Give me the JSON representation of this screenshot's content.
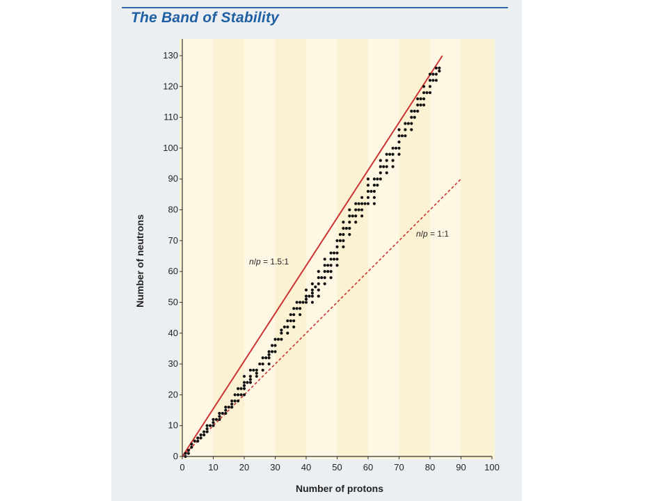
{
  "title": "The Band of Stability",
  "chart_data": {
    "type": "scatter",
    "title": "The Band of Stability",
    "xlabel": "Number of protons",
    "ylabel": "Number of neutrons",
    "xlim": [
      0,
      100
    ],
    "ylim": [
      0,
      130
    ],
    "xticks": [
      0,
      10,
      20,
      30,
      40,
      50,
      60,
      70,
      80,
      90,
      100
    ],
    "yticks": [
      0,
      10,
      20,
      30,
      40,
      50,
      60,
      70,
      80,
      90,
      100,
      110,
      120,
      130
    ],
    "grid": false,
    "lines": [
      {
        "label_n": "n",
        "label_p": "p",
        "label_value": " = 1.5:1",
        "style": "solid",
        "color": "#cc3333",
        "x": [
          0,
          84
        ],
        "y": [
          0,
          130
        ]
      },
      {
        "label_n": "n",
        "label_p": "p",
        "label_value": " = 1:1",
        "style": "dashed",
        "color": "#cc3333",
        "x": [
          0,
          90
        ],
        "y": [
          0,
          90
        ]
      }
    ],
    "series": [
      {
        "points": [
          [
            1,
            0
          ],
          [
            1,
            1
          ],
          [
            2,
            1
          ],
          [
            2,
            2
          ],
          [
            3,
            3
          ],
          [
            3,
            4
          ],
          [
            4,
            5
          ],
          [
            5,
            5
          ],
          [
            5,
            6
          ],
          [
            6,
            6
          ],
          [
            6,
            7
          ],
          [
            7,
            7
          ],
          [
            7,
            8
          ],
          [
            8,
            8
          ],
          [
            8,
            9
          ],
          [
            8,
            10
          ],
          [
            9,
            10
          ],
          [
            10,
            10
          ],
          [
            10,
            11
          ],
          [
            10,
            12
          ],
          [
            11,
            12
          ],
          [
            12,
            12
          ],
          [
            12,
            13
          ],
          [
            12,
            14
          ],
          [
            13,
            14
          ],
          [
            14,
            14
          ],
          [
            14,
            15
          ],
          [
            14,
            16
          ],
          [
            15,
            16
          ],
          [
            16,
            16
          ],
          [
            16,
            17
          ],
          [
            16,
            18
          ],
          [
            17,
            18
          ],
          [
            17,
            20
          ],
          [
            18,
            18
          ],
          [
            18,
            20
          ],
          [
            18,
            22
          ],
          [
            19,
            20
          ],
          [
            19,
            22
          ],
          [
            20,
            20
          ],
          [
            20,
            22
          ],
          [
            20,
            23
          ],
          [
            20,
            24
          ],
          [
            20,
            26
          ],
          [
            21,
            24
          ],
          [
            22,
            24
          ],
          [
            22,
            25
          ],
          [
            22,
            26
          ],
          [
            22,
            28
          ],
          [
            23,
            28
          ],
          [
            24,
            26
          ],
          [
            24,
            27
          ],
          [
            24,
            28
          ],
          [
            25,
            30
          ],
          [
            26,
            28
          ],
          [
            26,
            30
          ],
          [
            26,
            32
          ],
          [
            27,
            32
          ],
          [
            28,
            30
          ],
          [
            28,
            32
          ],
          [
            28,
            33
          ],
          [
            28,
            34
          ],
          [
            29,
            34
          ],
          [
            29,
            36
          ],
          [
            30,
            34
          ],
          [
            30,
            36
          ],
          [
            30,
            38
          ],
          [
            31,
            38
          ],
          [
            32,
            38
          ],
          [
            32,
            40
          ],
          [
            32,
            41
          ],
          [
            33,
            42
          ],
          [
            34,
            40
          ],
          [
            34,
            42
          ],
          [
            34,
            44
          ],
          [
            35,
            44
          ],
          [
            35,
            46
          ],
          [
            36,
            42
          ],
          [
            36,
            44
          ],
          [
            36,
            46
          ],
          [
            36,
            48
          ],
          [
            37,
            48
          ],
          [
            37,
            50
          ],
          [
            38,
            46
          ],
          [
            38,
            48
          ],
          [
            38,
            50
          ],
          [
            39,
            50
          ],
          [
            40,
            50
          ],
          [
            40,
            51
          ],
          [
            40,
            52
          ],
          [
            40,
            54
          ],
          [
            41,
            52
          ],
          [
            42,
            50
          ],
          [
            42,
            52
          ],
          [
            42,
            53
          ],
          [
            42,
            54
          ],
          [
            42,
            56
          ],
          [
            43,
            55
          ],
          [
            44,
            52
          ],
          [
            44,
            54
          ],
          [
            44,
            56
          ],
          [
            44,
            58
          ],
          [
            44,
            60
          ],
          [
            45,
            58
          ],
          [
            46,
            56
          ],
          [
            46,
            58
          ],
          [
            46,
            60
          ],
          [
            46,
            62
          ],
          [
            46,
            64
          ],
          [
            47,
            60
          ],
          [
            47,
            62
          ],
          [
            48,
            58
          ],
          [
            48,
            60
          ],
          [
            48,
            62
          ],
          [
            48,
            64
          ],
          [
            48,
            66
          ],
          [
            49,
            64
          ],
          [
            49,
            66
          ],
          [
            50,
            62
          ],
          [
            50,
            64
          ],
          [
            50,
            66
          ],
          [
            50,
            68
          ],
          [
            50,
            70
          ],
          [
            51,
            70
          ],
          [
            51,
            72
          ],
          [
            52,
            68
          ],
          [
            52,
            70
          ],
          [
            52,
            72
          ],
          [
            52,
            74
          ],
          [
            52,
            76
          ],
          [
            53,
            74
          ],
          [
            54,
            72
          ],
          [
            54,
            74
          ],
          [
            54,
            76
          ],
          [
            54,
            78
          ],
          [
            54,
            80
          ],
          [
            55,
            78
          ],
          [
            56,
            76
          ],
          [
            56,
            78
          ],
          [
            56,
            80
          ],
          [
            56,
            82
          ],
          [
            57,
            80
          ],
          [
            57,
            82
          ],
          [
            58,
            78
          ],
          [
            58,
            80
          ],
          [
            58,
            82
          ],
          [
            58,
            84
          ],
          [
            59,
            82
          ],
          [
            60,
            82
          ],
          [
            60,
            84
          ],
          [
            60,
            86
          ],
          [
            60,
            88
          ],
          [
            60,
            90
          ],
          [
            61,
            86
          ],
          [
            62,
            82
          ],
          [
            62,
            84
          ],
          [
            62,
            86
          ],
          [
            62,
            88
          ],
          [
            62,
            90
          ],
          [
            63,
            88
          ],
          [
            63,
            90
          ],
          [
            64,
            90
          ],
          [
            64,
            92
          ],
          [
            64,
            94
          ],
          [
            64,
            96
          ],
          [
            65,
            94
          ],
          [
            66,
            92
          ],
          [
            66,
            94
          ],
          [
            66,
            96
          ],
          [
            66,
            98
          ],
          [
            67,
            98
          ],
          [
            68,
            94
          ],
          [
            68,
            96
          ],
          [
            68,
            98
          ],
          [
            68,
            100
          ],
          [
            69,
            100
          ],
          [
            70,
            98
          ],
          [
            70,
            100
          ],
          [
            70,
            102
          ],
          [
            70,
            104
          ],
          [
            70,
            106
          ],
          [
            71,
            104
          ],
          [
            72,
            104
          ],
          [
            72,
            106
          ],
          [
            72,
            108
          ],
          [
            73,
            108
          ],
          [
            74,
            106
          ],
          [
            74,
            108
          ],
          [
            74,
            110
          ],
          [
            74,
            112
          ],
          [
            75,
            110
          ],
          [
            75,
            112
          ],
          [
            76,
            112
          ],
          [
            76,
            114
          ],
          [
            76,
            116
          ],
          [
            77,
            114
          ],
          [
            77,
            116
          ],
          [
            78,
            114
          ],
          [
            78,
            116
          ],
          [
            78,
            118
          ],
          [
            78,
            120
          ],
          [
            79,
            118
          ],
          [
            80,
            118
          ],
          [
            80,
            120
          ],
          [
            80,
            122
          ],
          [
            80,
            124
          ],
          [
            81,
            122
          ],
          [
            81,
            124
          ],
          [
            82,
            122
          ],
          [
            82,
            124
          ],
          [
            82,
            126
          ],
          [
            83,
            125
          ],
          [
            83,
            126
          ]
        ]
      }
    ]
  }
}
